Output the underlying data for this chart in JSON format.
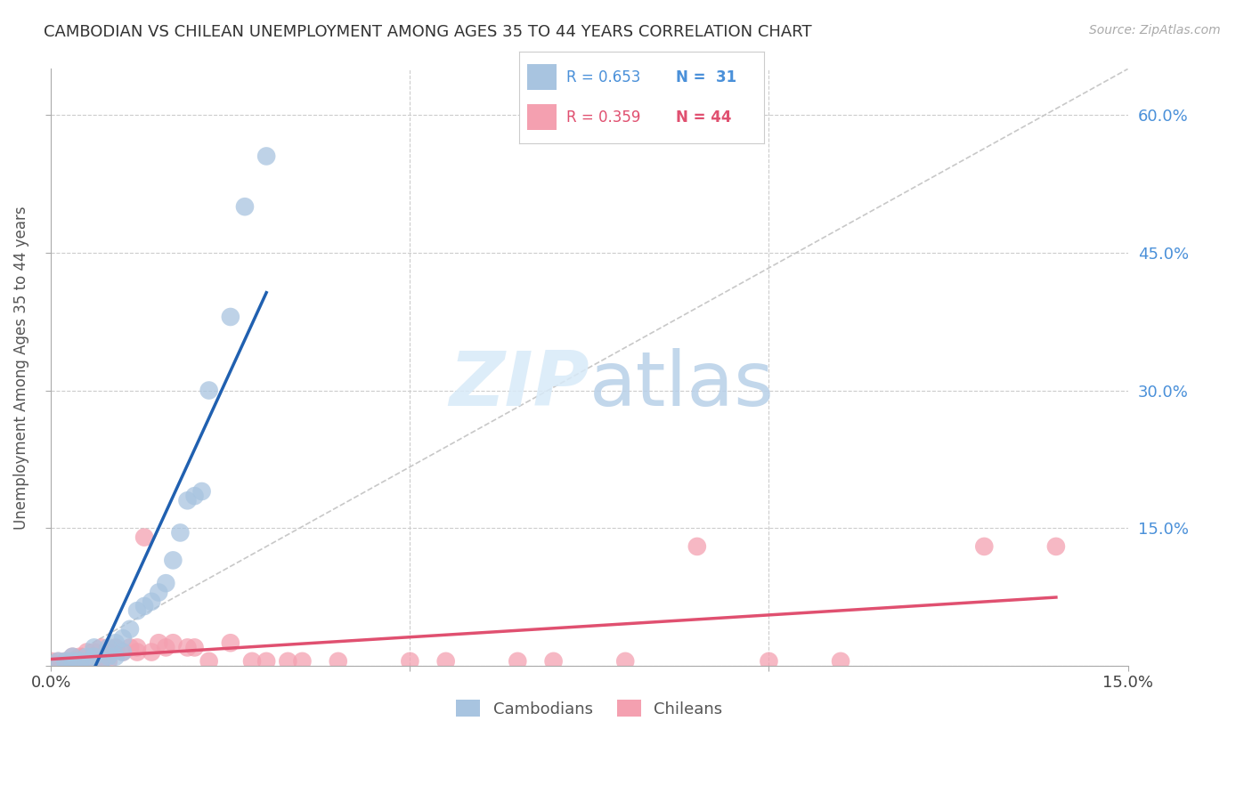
{
  "title": "CAMBODIAN VS CHILEAN UNEMPLOYMENT AMONG AGES 35 TO 44 YEARS CORRELATION CHART",
  "source": "Source: ZipAtlas.com",
  "ylabel": "Unemployment Among Ages 35 to 44 years",
  "xlim": [
    0.0,
    0.15
  ],
  "ylim": [
    0.0,
    0.65
  ],
  "yticks": [
    0.0,
    0.15,
    0.3,
    0.45,
    0.6
  ],
  "ytick_labels": [
    "",
    "15.0%",
    "30.0%",
    "45.0%",
    "60.0%"
  ],
  "cambodian_color": "#a8c4e0",
  "chilean_color": "#f4a0b0",
  "cambodian_line_color": "#2060b0",
  "chilean_line_color": "#e05070",
  "diagonal_color": "#c8c8c8",
  "legend_R_cambodian": "R = 0.653",
  "legend_N_cambodian": "N =  31",
  "legend_R_chilean": "R = 0.359",
  "legend_N_chilean": "N = 44",
  "cambodian_x": [
    0.001,
    0.002,
    0.003,
    0.003,
    0.004,
    0.005,
    0.005,
    0.006,
    0.006,
    0.007,
    0.008,
    0.008,
    0.009,
    0.009,
    0.01,
    0.01,
    0.011,
    0.012,
    0.013,
    0.014,
    0.015,
    0.016,
    0.017,
    0.018,
    0.019,
    0.02,
    0.021,
    0.022,
    0.025,
    0.027,
    0.03
  ],
  "cambodian_y": [
    0.005,
    0.005,
    0.005,
    0.01,
    0.005,
    0.005,
    0.01,
    0.01,
    0.02,
    0.005,
    0.01,
    0.02,
    0.01,
    0.025,
    0.015,
    0.03,
    0.04,
    0.06,
    0.065,
    0.07,
    0.08,
    0.09,
    0.115,
    0.145,
    0.18,
    0.185,
    0.19,
    0.3,
    0.38,
    0.5,
    0.555
  ],
  "chilean_x": [
    0.0,
    0.001,
    0.002,
    0.003,
    0.003,
    0.004,
    0.004,
    0.005,
    0.005,
    0.006,
    0.006,
    0.007,
    0.007,
    0.008,
    0.008,
    0.009,
    0.01,
    0.011,
    0.012,
    0.012,
    0.013,
    0.014,
    0.015,
    0.016,
    0.017,
    0.019,
    0.02,
    0.022,
    0.025,
    0.028,
    0.03,
    0.033,
    0.035,
    0.04,
    0.05,
    0.055,
    0.065,
    0.07,
    0.08,
    0.09,
    0.1,
    0.11,
    0.13,
    0.14
  ],
  "chilean_y": [
    0.005,
    0.005,
    0.005,
    0.005,
    0.01,
    0.005,
    0.01,
    0.005,
    0.015,
    0.005,
    0.015,
    0.005,
    0.02,
    0.005,
    0.015,
    0.02,
    0.015,
    0.02,
    0.015,
    0.02,
    0.14,
    0.015,
    0.025,
    0.02,
    0.025,
    0.02,
    0.02,
    0.005,
    0.025,
    0.005,
    0.005,
    0.005,
    0.005,
    0.005,
    0.005,
    0.005,
    0.005,
    0.005,
    0.005,
    0.13,
    0.005,
    0.005,
    0.13,
    0.13
  ]
}
